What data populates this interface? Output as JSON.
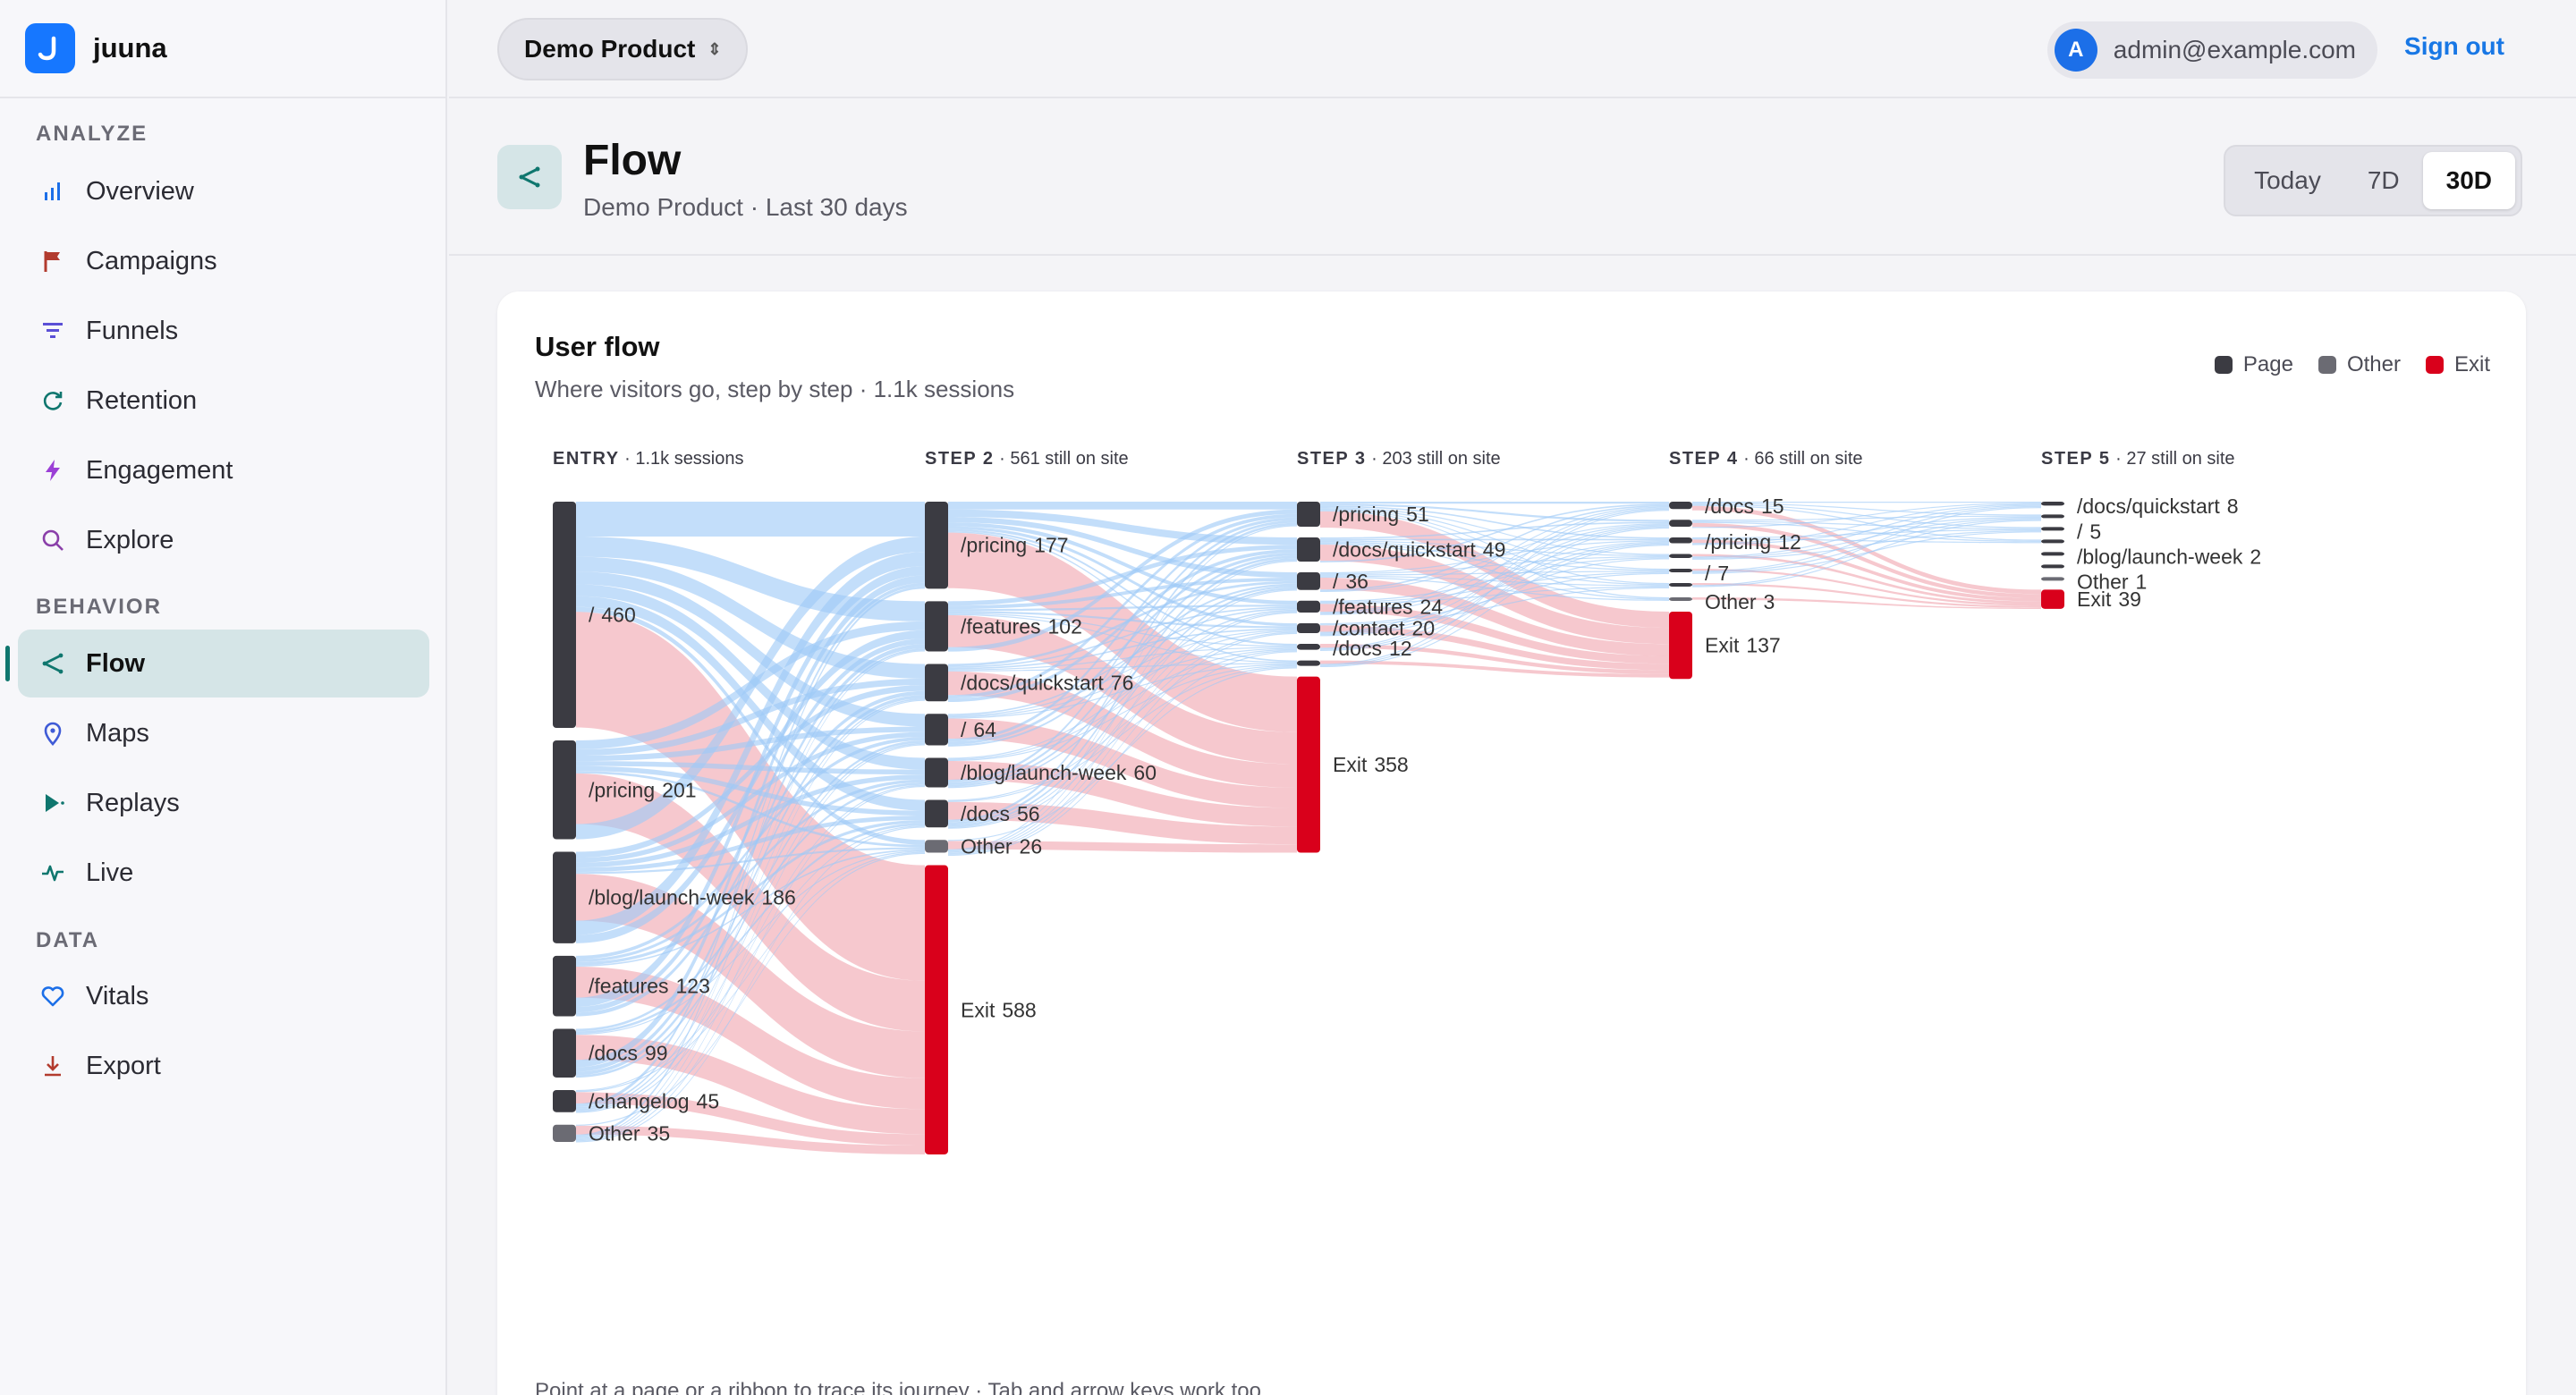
{
  "brand": {
    "name": "juuna"
  },
  "sidebar": {
    "sections": [
      {
        "title": "ANALYZE",
        "items": [
          {
            "label": "Overview",
            "icon": "bar-chart-icon"
          },
          {
            "label": "Campaigns",
            "icon": "flag-icon"
          },
          {
            "label": "Funnels",
            "icon": "funnel-icon"
          },
          {
            "label": "Retention",
            "icon": "refresh-icon"
          },
          {
            "label": "Engagement",
            "icon": "bolt-icon"
          },
          {
            "label": "Explore",
            "icon": "search-icon"
          }
        ]
      },
      {
        "title": "BEHAVIOR",
        "items": [
          {
            "label": "Flow",
            "icon": "share-icon",
            "active": true
          },
          {
            "label": "Maps",
            "icon": "map-pin-icon"
          },
          {
            "label": "Replays",
            "icon": "play-icon"
          },
          {
            "label": "Live",
            "icon": "pulse-icon"
          }
        ]
      },
      {
        "title": "DATA",
        "items": [
          {
            "label": "Vitals",
            "icon": "heart-icon"
          },
          {
            "label": "Export",
            "icon": "download-icon"
          }
        ]
      }
    ]
  },
  "topbar": {
    "product": "Demo Product",
    "avatar_initial": "A",
    "user_email": "admin@example.com",
    "sign_out": "Sign out"
  },
  "header": {
    "title": "Flow",
    "subtitle": "Demo Product · Last 30 days",
    "ranges": [
      "Today",
      "7D",
      "30D"
    ],
    "active_range": "30D"
  },
  "card": {
    "title": "User flow",
    "subtitle": "Where visitors go, step by step · 1.1k sessions",
    "footer": "Point at a page or a ribbon to trace its journey · Tab and arrow keys work too",
    "legend": [
      {
        "label": "Page",
        "color": "#3b3b42"
      },
      {
        "label": "Other",
        "color": "#6b6b73"
      },
      {
        "label": "Exit",
        "color": "#d9001b"
      }
    ]
  },
  "chart_data": {
    "type": "sankey",
    "colors": {
      "page": "#3b3b42",
      "other": "#6b6b73",
      "exit": "#d9001b",
      "continue_link": "#9ec9f7",
      "exit_link": "#f1a7b0"
    },
    "steps": [
      {
        "name": "ENTRY",
        "caption": "1.1k sessions",
        "nodes": [
          {
            "label": "/",
            "value": 460,
            "kind": "page"
          },
          {
            "label": "/pricing",
            "value": 201,
            "kind": "page"
          },
          {
            "label": "/blog/launch-week",
            "value": 186,
            "kind": "page"
          },
          {
            "label": "/features",
            "value": 123,
            "kind": "page"
          },
          {
            "label": "/docs",
            "value": 99,
            "kind": "page"
          },
          {
            "label": "/changelog",
            "value": 45,
            "kind": "page"
          },
          {
            "label": "Other",
            "value": 35,
            "kind": "other"
          }
        ]
      },
      {
        "name": "STEP 2",
        "caption": "561 still on site",
        "nodes": [
          {
            "label": "/pricing",
            "value": 177,
            "kind": "page"
          },
          {
            "label": "/features",
            "value": 102,
            "kind": "page"
          },
          {
            "label": "/docs/quickstart",
            "value": 76,
            "kind": "page"
          },
          {
            "label": "/",
            "value": 64,
            "kind": "page"
          },
          {
            "label": "/blog/launch-week",
            "value": 60,
            "kind": "page"
          },
          {
            "label": "/docs",
            "value": 56,
            "kind": "page"
          },
          {
            "label": "Other",
            "value": 26,
            "kind": "other"
          },
          {
            "label": "Exit",
            "value": 588,
            "kind": "exit"
          }
        ]
      },
      {
        "name": "STEP 3",
        "caption": "203 still on site",
        "nodes": [
          {
            "label": "/pricing",
            "value": 51,
            "kind": "page"
          },
          {
            "label": "/docs/quickstart",
            "value": 49,
            "kind": "page"
          },
          {
            "label": "/",
            "value": 36,
            "kind": "page"
          },
          {
            "label": "/features",
            "value": 24,
            "kind": "page"
          },
          {
            "label": "/contact",
            "value": 20,
            "kind": "page"
          },
          {
            "label": "/docs",
            "value": 12,
            "kind": "page"
          },
          {
            "label": "",
            "value": 11,
            "kind": "page"
          },
          {
            "label": "Exit",
            "value": 358,
            "kind": "exit"
          }
        ]
      },
      {
        "name": "STEP 4",
        "caption": "66 still on site",
        "nodes": [
          {
            "label": "/docs",
            "value": 15,
            "kind": "page"
          },
          {
            "label": "",
            "value": 14,
            "kind": "page"
          },
          {
            "label": "/pricing",
            "value": 12,
            "kind": "page"
          },
          {
            "label": "",
            "value": 8,
            "kind": "page"
          },
          {
            "label": "/",
            "value": 7,
            "kind": "page"
          },
          {
            "label": "",
            "value": 7,
            "kind": "page"
          },
          {
            "label": "Other",
            "value": 3,
            "kind": "other"
          },
          {
            "label": "Exit",
            "value": 137,
            "kind": "exit"
          }
        ]
      },
      {
        "name": "STEP 5",
        "caption": "27 still on site",
        "nodes": [
          {
            "label": "/docs/quickstart",
            "value": 8,
            "kind": "page"
          },
          {
            "label": "",
            "value": 6,
            "kind": "page"
          },
          {
            "label": "/",
            "value": 5,
            "kind": "page"
          },
          {
            "label": "",
            "value": 3,
            "kind": "page"
          },
          {
            "label": "/blog/launch-week",
            "value": 2,
            "kind": "page"
          },
          {
            "label": "",
            "value": 2,
            "kind": "page"
          },
          {
            "label": "Other",
            "value": 1,
            "kind": "other"
          },
          {
            "label": "Exit",
            "value": 39,
            "kind": "exit"
          }
        ]
      }
    ]
  }
}
